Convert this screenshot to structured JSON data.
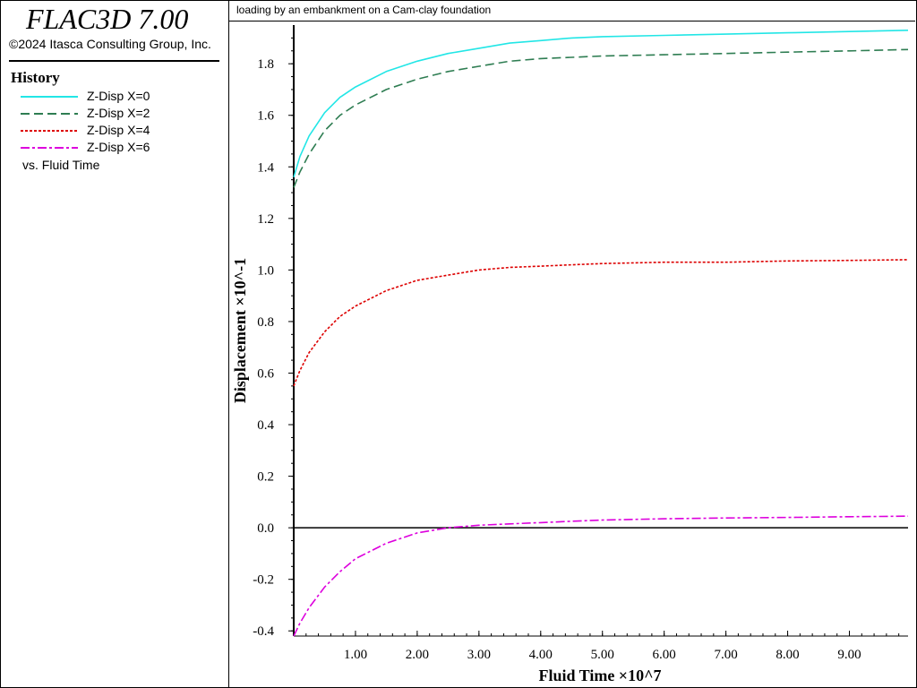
{
  "app": {
    "title": "FLAC3D 7.00",
    "copyright": "©2024 Itasca Consulting Group, Inc."
  },
  "legend": {
    "heading": "History",
    "items": [
      {
        "label": "Z-Disp X=0",
        "color": "#22e6e6",
        "dash": "solid"
      },
      {
        "label": "Z-Disp X=2",
        "color": "#2e7d52",
        "dash": "dashed"
      },
      {
        "label": "Z-Disp X=4",
        "color": "#dd0000",
        "dash": "dotted"
      },
      {
        "label": "Z-Disp X=6",
        "color": "#dd00dd",
        "dash": "dashdot"
      }
    ],
    "versus": "vs. Fluid Time"
  },
  "plot_title": "loading by an embankment on a Cam-clay foundation",
  "chart_data": {
    "type": "line",
    "xlabel": "Fluid Time ×10^7",
    "ylabel": "Displacement ×10^-1",
    "xlim": [
      0,
      9.95
    ],
    "ylim": [
      -0.42,
      1.95
    ],
    "x_ticks": [
      1.0,
      2.0,
      3.0,
      4.0,
      5.0,
      6.0,
      7.0,
      8.0,
      9.0
    ],
    "x_tick_labels": [
      "1.00",
      "2.00",
      "3.00",
      "4.00",
      "5.00",
      "6.00",
      "7.00",
      "8.00",
      "9.00"
    ],
    "y_ticks": [
      -0.4,
      -0.2,
      0.0,
      0.2,
      0.4,
      0.6,
      0.8,
      1.0,
      1.2,
      1.4,
      1.6,
      1.8
    ],
    "y_tick_labels": [
      "-0.4",
      "-0.2",
      "0.0",
      "0.2",
      "0.4",
      "0.6",
      "0.8",
      "1.0",
      "1.2",
      "1.4",
      "1.6",
      "1.8"
    ],
    "zero_line": true,
    "grid": false,
    "x": [
      0,
      0.1,
      0.25,
      0.5,
      0.75,
      1.0,
      1.5,
      2.0,
      2.5,
      3.0,
      3.5,
      4.0,
      4.5,
      5.0,
      6.0,
      7.0,
      8.0,
      9.0,
      9.95
    ],
    "series": [
      {
        "name": "Z-Disp X=0",
        "values": [
          1.36,
          1.44,
          1.52,
          1.61,
          1.67,
          1.71,
          1.77,
          1.81,
          1.84,
          1.86,
          1.88,
          1.89,
          1.9,
          1.905,
          1.91,
          1.915,
          1.92,
          1.925,
          1.93
        ]
      },
      {
        "name": "Z-Disp X=2",
        "values": [
          1.32,
          1.38,
          1.45,
          1.54,
          1.6,
          1.64,
          1.7,
          1.74,
          1.77,
          1.79,
          1.81,
          1.82,
          1.825,
          1.83,
          1.835,
          1.84,
          1.845,
          1.85,
          1.855
        ]
      },
      {
        "name": "Z-Disp X=4",
        "values": [
          0.55,
          0.61,
          0.68,
          0.76,
          0.82,
          0.86,
          0.92,
          0.96,
          0.98,
          1.0,
          1.01,
          1.015,
          1.02,
          1.025,
          1.03,
          1.03,
          1.035,
          1.037,
          1.04
        ]
      },
      {
        "name": "Z-Disp X=6",
        "values": [
          -0.42,
          -0.37,
          -0.31,
          -0.23,
          -0.17,
          -0.12,
          -0.06,
          -0.02,
          0.0,
          0.01,
          0.015,
          0.02,
          0.025,
          0.03,
          0.035,
          0.038,
          0.04,
          0.043,
          0.045
        ]
      }
    ]
  }
}
